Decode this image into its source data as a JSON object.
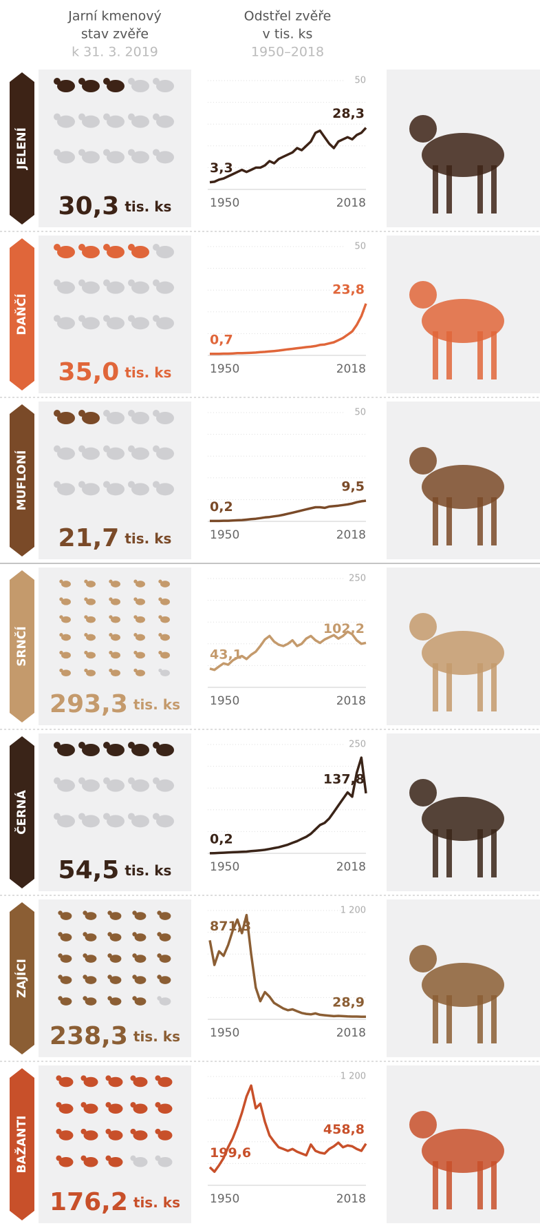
{
  "header": {
    "stock_title": [
      "Jarní kmenový",
      "stav zvěře"
    ],
    "stock_date": "k 31. 3. 2019",
    "cull_title": [
      "Odstřel zvěře",
      "v tis. ks"
    ],
    "cull_period": "1950–2018"
  },
  "unit": "tis. ks",
  "chart_data": [
    {
      "type": "line",
      "name": "JELENÍ",
      "population": 30.3,
      "population_label": "30,3",
      "color": "#3d2316",
      "xlim": [
        1950,
        2018
      ],
      "xticks": [
        1950,
        2018
      ],
      "ylim": [
        0,
        50
      ],
      "yticks": [
        50
      ],
      "x": [
        1950,
        1952,
        1954,
        1956,
        1958,
        1960,
        1962,
        1964,
        1966,
        1968,
        1970,
        1972,
        1974,
        1976,
        1978,
        1980,
        1982,
        1984,
        1986,
        1988,
        1990,
        1992,
        1994,
        1996,
        1998,
        2000,
        2002,
        2004,
        2006,
        2008,
        2010,
        2012,
        2014,
        2016,
        2018
      ],
      "values": [
        3.3,
        3.5,
        4.5,
        5,
        6,
        7,
        8,
        9,
        8,
        9,
        10,
        10,
        11,
        13,
        12,
        14,
        15,
        16,
        17,
        19,
        18,
        20,
        22,
        26,
        27,
        24,
        21,
        19,
        22,
        23,
        24,
        23,
        25,
        26,
        28.3
      ],
      "value_labels": [
        "3,3",
        null,
        null,
        null,
        null,
        null,
        null,
        null,
        null,
        null,
        null,
        null,
        null,
        null,
        null,
        null,
        null,
        null,
        null,
        null,
        null,
        null,
        null,
        null,
        null,
        null,
        null,
        null,
        null,
        null,
        null,
        null,
        null,
        null,
        "28,3"
      ]
    },
    {
      "type": "line",
      "name": "DAŇČÍ",
      "population": 35.0,
      "population_label": "35,0",
      "color": "#e0663a",
      "xlim": [
        1950,
        2018
      ],
      "xticks": [
        1950,
        2018
      ],
      "ylim": [
        0,
        50
      ],
      "yticks": [
        50
      ],
      "x": [
        1950,
        1952,
        1954,
        1956,
        1958,
        1960,
        1962,
        1964,
        1966,
        1968,
        1970,
        1972,
        1974,
        1976,
        1978,
        1980,
        1982,
        1984,
        1986,
        1988,
        1990,
        1992,
        1994,
        1996,
        1998,
        2000,
        2002,
        2004,
        2006,
        2008,
        2010,
        2012,
        2014,
        2016,
        2018
      ],
      "values": [
        0.7,
        0.7,
        0.7,
        0.8,
        0.8,
        0.9,
        1,
        1,
        1.1,
        1.2,
        1.3,
        1.5,
        1.6,
        1.8,
        2,
        2.2,
        2.5,
        2.8,
        3,
        3.3,
        3.5,
        3.8,
        4,
        4.3,
        4.8,
        5,
        5.5,
        6,
        7,
        8,
        9.5,
        11,
        14,
        18,
        23.8
      ],
      "value_labels": [
        "0,7",
        null,
        null,
        null,
        null,
        null,
        null,
        null,
        null,
        null,
        null,
        null,
        null,
        null,
        null,
        null,
        null,
        null,
        null,
        null,
        null,
        null,
        null,
        null,
        null,
        null,
        null,
        null,
        null,
        null,
        null,
        null,
        null,
        null,
        "23,8"
      ]
    },
    {
      "type": "line",
      "name": "MUFLONÍ",
      "population": 21.7,
      "population_label": "21,7",
      "color": "#7a4a28",
      "xlim": [
        1950,
        2018
      ],
      "xticks": [
        1950,
        2018
      ],
      "ylim": [
        0,
        50
      ],
      "yticks": [
        50
      ],
      "x": [
        1950,
        1952,
        1954,
        1956,
        1958,
        1960,
        1962,
        1964,
        1966,
        1968,
        1970,
        1972,
        1974,
        1976,
        1978,
        1980,
        1982,
        1984,
        1986,
        1988,
        1990,
        1992,
        1994,
        1996,
        1998,
        2000,
        2002,
        2004,
        2006,
        2008,
        2010,
        2012,
        2014,
        2016,
        2018
      ],
      "values": [
        0.2,
        0.2,
        0.2,
        0.3,
        0.3,
        0.4,
        0.5,
        0.6,
        0.8,
        1,
        1.2,
        1.5,
        1.8,
        2,
        2.3,
        2.6,
        3,
        3.5,
        4,
        4.5,
        5,
        5.5,
        6,
        6.5,
        6.5,
        6.2,
        6.8,
        7,
        7.2,
        7.5,
        7.8,
        8.2,
        8.8,
        9.2,
        9.5
      ],
      "value_labels": [
        "0,2",
        null,
        null,
        null,
        null,
        null,
        null,
        null,
        null,
        null,
        null,
        null,
        null,
        null,
        null,
        null,
        null,
        null,
        null,
        null,
        null,
        null,
        null,
        null,
        null,
        null,
        null,
        null,
        null,
        null,
        null,
        null,
        null,
        null,
        "9,5"
      ]
    },
    {
      "type": "line",
      "name": "SRNČÍ",
      "population": 293.3,
      "population_label": "293,3",
      "color": "#c49a6c",
      "xlim": [
        1950,
        2018
      ],
      "xticks": [
        1950,
        2018
      ],
      "ylim": [
        0,
        250
      ],
      "yticks": [
        250
      ],
      "x": [
        1950,
        1952,
        1954,
        1956,
        1958,
        1960,
        1962,
        1964,
        1966,
        1968,
        1970,
        1972,
        1974,
        1976,
        1978,
        1980,
        1982,
        1984,
        1986,
        1988,
        1990,
        1992,
        1994,
        1996,
        1998,
        2000,
        2002,
        2004,
        2006,
        2008,
        2010,
        2012,
        2014,
        2016,
        2018
      ],
      "values": [
        43.1,
        40,
        48,
        55,
        52,
        62,
        68,
        72,
        65,
        75,
        82,
        95,
        110,
        118,
        105,
        98,
        95,
        100,
        108,
        95,
        100,
        112,
        118,
        108,
        102,
        110,
        115,
        120,
        112,
        118,
        128,
        122,
        108,
        100,
        102.2
      ],
      "value_labels": [
        "43,1",
        null,
        null,
        null,
        null,
        null,
        null,
        null,
        null,
        null,
        null,
        null,
        null,
        null,
        null,
        null,
        null,
        null,
        null,
        null,
        null,
        null,
        null,
        null,
        null,
        null,
        null,
        null,
        null,
        null,
        null,
        null,
        null,
        null,
        "102,2"
      ]
    },
    {
      "type": "line",
      "name": "ČERNÁ",
      "population": 54.5,
      "population_label": "54,5",
      "color": "#3a2418",
      "xlim": [
        1950,
        2018
      ],
      "xticks": [
        1950,
        2018
      ],
      "ylim": [
        0,
        250
      ],
      "yticks": [
        250
      ],
      "x": [
        1950,
        1952,
        1954,
        1956,
        1958,
        1960,
        1962,
        1964,
        1966,
        1968,
        1970,
        1972,
        1974,
        1976,
        1978,
        1980,
        1982,
        1984,
        1986,
        1988,
        1990,
        1992,
        1994,
        1996,
        1998,
        2000,
        2002,
        2004,
        2006,
        2008,
        2010,
        2012,
        2014,
        2016,
        2018
      ],
      "values": [
        0.2,
        0.5,
        1,
        1.5,
        2,
        2.5,
        3,
        3.5,
        4,
        5,
        6,
        7,
        8,
        10,
        12,
        14,
        17,
        20,
        24,
        28,
        33,
        38,
        45,
        55,
        65,
        70,
        80,
        95,
        110,
        125,
        140,
        130,
        185,
        220,
        137.8
      ],
      "value_labels": [
        "0,2",
        null,
        null,
        null,
        null,
        null,
        null,
        null,
        null,
        null,
        null,
        null,
        null,
        null,
        null,
        null,
        null,
        null,
        null,
        null,
        null,
        null,
        null,
        null,
        null,
        null,
        null,
        null,
        null,
        null,
        null,
        null,
        null,
        null,
        "137,8"
      ]
    },
    {
      "type": "line",
      "name": "ZAJÍCI",
      "population": 238.3,
      "population_label": "238,3",
      "color": "#8b5e34",
      "xlim": [
        1950,
        2018
      ],
      "xticks": [
        1950,
        2018
      ],
      "ylim": [
        0,
        1200
      ],
      "yticks": [
        {
          "value": 1200,
          "label": "1 200"
        }
      ],
      "x": [
        1950,
        1952,
        1954,
        1956,
        1958,
        1960,
        1962,
        1964,
        1966,
        1968,
        1970,
        1972,
        1974,
        1976,
        1978,
        1980,
        1982,
        1984,
        1986,
        1988,
        1990,
        1992,
        1994,
        1996,
        1998,
        2000,
        2002,
        2004,
        2006,
        2008,
        2010,
        2012,
        2014,
        2016,
        2018
      ],
      "values": [
        871.3,
        600,
        750,
        700,
        820,
        980,
        1100,
        950,
        1150,
        720,
        350,
        200,
        300,
        250,
        180,
        150,
        120,
        100,
        110,
        90,
        70,
        60,
        55,
        65,
        50,
        45,
        40,
        35,
        38,
        35,
        32,
        30,
        30,
        29,
        28.9
      ],
      "value_labels": [
        "871,3",
        null,
        null,
        null,
        null,
        null,
        null,
        null,
        null,
        null,
        null,
        null,
        null,
        null,
        null,
        null,
        null,
        null,
        null,
        null,
        null,
        null,
        null,
        null,
        null,
        null,
        null,
        null,
        null,
        null,
        null,
        null,
        null,
        null,
        "28,9"
      ]
    },
    {
      "type": "line",
      "name": "BAŽANTI",
      "population": 176.2,
      "population_label": "176,2",
      "color": "#c8502a",
      "xlim": [
        1950,
        2018
      ],
      "xticks": [
        1950,
        2018
      ],
      "ylim": [
        0,
        1200
      ],
      "yticks": [
        {
          "value": 1200,
          "label": "1 200"
        }
      ],
      "x": [
        1950,
        1952,
        1954,
        1956,
        1958,
        1960,
        1962,
        1964,
        1966,
        1968,
        1970,
        1972,
        1974,
        1976,
        1978,
        1980,
        1982,
        1984,
        1986,
        1988,
        1990,
        1992,
        1994,
        1996,
        1998,
        2000,
        2002,
        2004,
        2006,
        2008,
        2010,
        2012,
        2014,
        2016,
        2018
      ],
      "values": [
        199.6,
        150,
        220,
        300,
        420,
        520,
        650,
        800,
        980,
        1100,
        850,
        900,
        700,
        550,
        480,
        420,
        400,
        380,
        400,
        370,
        350,
        330,
        450,
        380,
        360,
        350,
        400,
        430,
        470,
        420,
        440,
        430,
        400,
        380,
        458.8
      ],
      "value_labels": [
        "199,6",
        null,
        null,
        null,
        null,
        null,
        null,
        null,
        null,
        null,
        null,
        null,
        null,
        null,
        null,
        null,
        null,
        null,
        null,
        null,
        null,
        null,
        null,
        null,
        null,
        null,
        null,
        null,
        null,
        null,
        null,
        null,
        null,
        null,
        "458,8"
      ]
    }
  ]
}
